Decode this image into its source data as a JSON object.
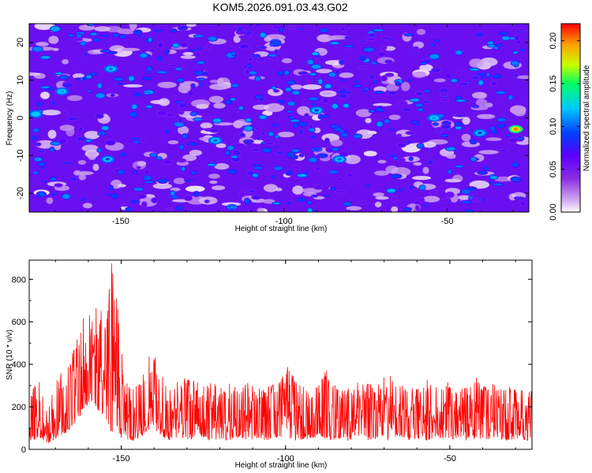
{
  "title": "KOM5.2026.091.03.43.G02",
  "chart_data": [
    {
      "type": "heatmap",
      "xlabel": "Height of straight line (km)",
      "ylabel": "Frequency (Hz)",
      "xlim": [
        -178,
        -25
      ],
      "ylim": [
        -25,
        25
      ],
      "x_ticks": [
        -150,
        -100,
        -50
      ],
      "x_tick_labels": [
        "-150",
        "-100",
        "-50"
      ],
      "y_ticks": [
        -20,
        -10,
        0,
        10,
        20
      ],
      "y_tick_labels": [
        "-20",
        "-10",
        "0",
        "10",
        "20"
      ],
      "colorbar": {
        "label": "Normalized spectral amplitude",
        "range": [
          0.0,
          0.22
        ],
        "ticks": [
          0.0,
          0.05,
          0.1,
          0.15,
          0.2
        ],
        "tick_labels": [
          "0.00",
          "0.05",
          "0.10",
          "0.15",
          "0.20"
        ],
        "colors": [
          "#ffffff",
          "#d9b8f2",
          "#8a2be2",
          "#5a00ff",
          "#0040ff",
          "#00c8ff",
          "#00ff64",
          "#c8ff00",
          "#ffa000",
          "#ff0000"
        ]
      },
      "typical_amplitude": [
        0.0,
        0.08
      ],
      "hotspots": [
        {
          "x": -29,
          "y": -3,
          "amplitude": 0.2
        },
        {
          "x": -176,
          "y": 1,
          "amplitude": 0.12
        },
        {
          "x": -168,
          "y": 7,
          "amplitude": 0.11
        },
        {
          "x": -153,
          "y": 13,
          "amplitude": 0.1
        },
        {
          "x": -121,
          "y": -6,
          "amplitude": 0.1
        },
        {
          "x": -54,
          "y": 0,
          "amplitude": 0.11
        },
        {
          "x": -83,
          "y": -11,
          "amplitude": 0.1
        },
        {
          "x": -154,
          "y": -11,
          "amplitude": 0.09
        },
        {
          "x": -90,
          "y": 2,
          "amplitude": 0.09
        },
        {
          "x": -40,
          "y": -4,
          "amplitude": 0.09
        }
      ]
    },
    {
      "type": "line",
      "xlabel": "Height of straight line (km)",
      "ylabel": "SNR (10 * v/v)",
      "xlim": [
        -178,
        -25
      ],
      "ylim": [
        0,
        890
      ],
      "x_ticks": [
        -150,
        -100,
        -50
      ],
      "x_tick_labels": [
        "-150",
        "-100",
        "-50"
      ],
      "y_ticks": [
        0,
        200,
        400,
        600,
        800
      ],
      "y_tick_labels": [
        "0",
        "200",
        "400",
        "600",
        "800"
      ],
      "color": "#ff0000",
      "series": [
        {
          "name": "SNR",
          "x": [
            -178,
            -175,
            -172,
            -169,
            -166,
            -163,
            -161,
            -159,
            -157,
            -155,
            -153,
            -151,
            -149,
            -146,
            -143,
            -141,
            -139,
            -137,
            -135,
            -132,
            -129,
            -126,
            -123,
            -120,
            -117,
            -114,
            -111,
            -108,
            -105,
            -102,
            -99,
            -96,
            -93,
            -90,
            -87,
            -84,
            -81,
            -78,
            -75,
            -72,
            -69,
            -66,
            -63,
            -60,
            -57,
            -54,
            -51,
            -48,
            -45,
            -42,
            -39,
            -36,
            -33,
            -30,
            -27,
            -25
          ],
          "upper": [
            280,
            320,
            300,
            350,
            420,
            540,
            720,
            640,
            700,
            600,
            890,
            680,
            340,
            300,
            380,
            460,
            430,
            320,
            300,
            330,
            340,
            310,
            330,
            290,
            330,
            300,
            320,
            290,
            300,
            330,
            400,
            310,
            300,
            330,
            390,
            300,
            290,
            320,
            310,
            300,
            370,
            300,
            300,
            290,
            330,
            300,
            320,
            300,
            290,
            360,
            300,
            310,
            290,
            300,
            280,
            280
          ],
          "lower": [
            40,
            50,
            30,
            60,
            80,
            140,
            200,
            190,
            170,
            160,
            80,
            60,
            50,
            40,
            70,
            100,
            80,
            50,
            40,
            50,
            40,
            60,
            40,
            50,
            40,
            60,
            40,
            50,
            40,
            60,
            50,
            40,
            50,
            60,
            40,
            50,
            40,
            60,
            40,
            50,
            40,
            60,
            40,
            50,
            40,
            60,
            40,
            50,
            40,
            50,
            40,
            60,
            40,
            50,
            40,
            40
          ]
        }
      ]
    }
  ]
}
